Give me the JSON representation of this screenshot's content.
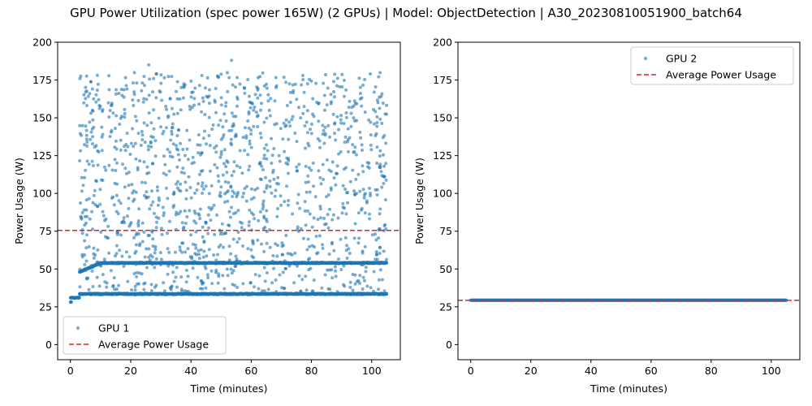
{
  "chart_data": {
    "title": "GPU Power Utilization (spec power 165W) (2 GPUs) | Model: ObjectDetection | A30_20230810051900_batch64",
    "panels": [
      {
        "type": "scatter",
        "xlabel": "Time (minutes)",
        "ylabel": "Power Usage (W)",
        "xlim": [
          -4.25,
          109.5
        ],
        "ylim": [
          -10,
          200
        ],
        "xticks": [
          0,
          20,
          40,
          60,
          80,
          100
        ],
        "yticks": [
          0,
          25,
          50,
          75,
          100,
          125,
          150,
          175,
          200
        ],
        "legend_position": "lower-left",
        "series": [
          {
            "name": "GPU 1",
            "kind": "scatter",
            "color": "#1f77b4",
            "x_range": [
              0,
              105
            ],
            "clusters": [
              {
                "description": "idle start",
                "y": 28,
                "x_range": [
                  0,
                  0.3
                ]
              },
              {
                "description": "initial plateau",
                "y": 31,
                "x_range": [
                  0,
                  3
                ]
              },
              {
                "description": "low band",
                "y": 33.5,
                "x_range": [
                  3,
                  105
                ]
              },
              {
                "description": "mid band",
                "y": 54,
                "x_range": [
                  3,
                  105
                ]
              },
              {
                "description": "scattered",
                "y_range": [
                  35,
                  188
                ],
                "x_range": [
                  3,
                  105
                ]
              }
            ],
            "y_max": 188
          },
          {
            "name": "Average Power Usage",
            "kind": "hline",
            "color": "#d62728",
            "y": 75.5
          }
        ]
      },
      {
        "type": "scatter",
        "xlabel": "Time (minutes)",
        "ylabel": "Power Usage (W)",
        "xlim": [
          -4.25,
          109.5
        ],
        "ylim": [
          -10,
          200
        ],
        "xticks": [
          0,
          20,
          40,
          60,
          80,
          100
        ],
        "yticks": [
          0,
          25,
          50,
          75,
          100,
          125,
          150,
          175,
          200
        ],
        "legend_position": "upper-right",
        "series": [
          {
            "name": "GPU 2",
            "kind": "scatter",
            "color": "#1f77b4",
            "x_range": [
              0,
              105
            ],
            "y": 29.3
          },
          {
            "name": "Average Power Usage",
            "kind": "hline",
            "color": "#d62728",
            "y": 29.3
          }
        ]
      }
    ]
  }
}
